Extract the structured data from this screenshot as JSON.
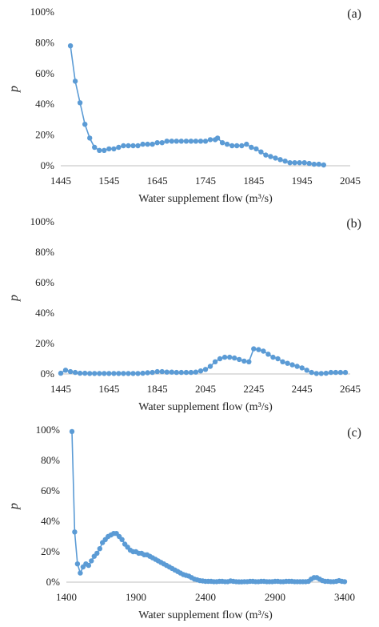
{
  "colors": {
    "series": "#5b9bd5",
    "axis": "#bfbfbf"
  },
  "chart_data": [
    {
      "type": "line",
      "panel_label": "(a)",
      "xlabel": "Water supplement flow (m³/s)",
      "ylabel": "p",
      "xlim": [
        1445,
        2045
      ],
      "ylim": [
        0,
        100
      ],
      "xticks": [
        "1445",
        "1545",
        "1645",
        "1745",
        "1845",
        "1945",
        "2045"
      ],
      "yticks": [
        "0%",
        "20%",
        "40%",
        "60%",
        "80%",
        "100%"
      ],
      "grid": false,
      "series": [
        {
          "x": [
            1465,
            1475,
            1485,
            1495,
            1505,
            1515,
            1525,
            1535,
            1545,
            1555,
            1565,
            1575,
            1585,
            1595,
            1605,
            1615,
            1625,
            1635,
            1645,
            1655,
            1665,
            1675,
            1685,
            1695,
            1705,
            1715,
            1725,
            1735,
            1745,
            1755,
            1765,
            1770,
            1780,
            1790,
            1800,
            1810,
            1820,
            1830,
            1840,
            1850,
            1860,
            1870,
            1880,
            1890,
            1900,
            1910,
            1920,
            1930,
            1940,
            1950,
            1960,
            1970,
            1980,
            1990
          ],
          "y": [
            78,
            55,
            41,
            27,
            18,
            12,
            10,
            10,
            11,
            11,
            12,
            13,
            13,
            13,
            13,
            14,
            14,
            14,
            15,
            15,
            16,
            16,
            16,
            16,
            16,
            16,
            16,
            16,
            16,
            17,
            17,
            18,
            15,
            14,
            13,
            13,
            13,
            14,
            12,
            11,
            9,
            7,
            6,
            5,
            4,
            3,
            2,
            2,
            2,
            2,
            1.5,
            1,
            1,
            0.5
          ]
        }
      ]
    },
    {
      "type": "line",
      "panel_label": "(b)",
      "xlabel": "Water supplement flow (m³/s)",
      "ylabel": "p",
      "xlim": [
        1445,
        2645
      ],
      "ylim": [
        0,
        100
      ],
      "xticks": [
        "1445",
        "1645",
        "1845",
        "2045",
        "2245",
        "2445",
        "2645"
      ],
      "yticks": [
        "0%",
        "20%",
        "40%",
        "60%",
        "80%",
        "100%"
      ],
      "grid": false,
      "series": [
        {
          "x": [
            1445,
            1465,
            1485,
            1505,
            1525,
            1545,
            1565,
            1585,
            1605,
            1625,
            1645,
            1665,
            1685,
            1705,
            1725,
            1745,
            1765,
            1785,
            1805,
            1825,
            1845,
            1865,
            1885,
            1905,
            1925,
            1945,
            1965,
            1985,
            2005,
            2025,
            2045,
            2065,
            2085,
            2105,
            2125,
            2145,
            2165,
            2185,
            2205,
            2225,
            2245,
            2265,
            2285,
            2305,
            2325,
            2345,
            2365,
            2385,
            2405,
            2425,
            2445,
            2465,
            2485,
            2505,
            2525,
            2545,
            2565,
            2585,
            2605,
            2625
          ],
          "y": [
            0.5,
            2.5,
            1.5,
            1,
            0.5,
            0.5,
            0.3,
            0.3,
            0.3,
            0.3,
            0.3,
            0.3,
            0.3,
            0.3,
            0.3,
            0.3,
            0.3,
            0.5,
            0.8,
            1,
            1.5,
            1.5,
            1.2,
            1.2,
            1,
            1,
            1,
            1,
            1.2,
            2,
            3,
            5,
            8,
            10,
            11,
            11,
            10.5,
            9.5,
            8.5,
            8,
            16.5,
            16,
            15,
            13,
            11,
            10,
            8,
            7,
            6,
            5,
            4,
            2.5,
            1,
            0.3,
            0.3,
            0.5,
            1,
            1,
            1,
            1
          ]
        }
      ]
    },
    {
      "type": "line",
      "panel_label": "(c)",
      "xlabel": "Water supplement flow (m³/s)",
      "ylabel": "p",
      "xlim": [
        1400,
        3400
      ],
      "ylim": [
        0,
        100
      ],
      "xticks": [
        "1400",
        "1900",
        "2400",
        "2900",
        "3400"
      ],
      "yticks": [
        "0%",
        "20%",
        "40%",
        "60%",
        "80%",
        "100%"
      ],
      "grid": false,
      "series": [
        {
          "x": [
            1440,
            1460,
            1480,
            1500,
            1520,
            1540,
            1560,
            1580,
            1600,
            1620,
            1640,
            1660,
            1680,
            1700,
            1720,
            1740,
            1760,
            1780,
            1800,
            1820,
            1840,
            1860,
            1880,
            1900,
            1920,
            1940,
            1960,
            1980,
            2000,
            2020,
            2040,
            2060,
            2080,
            2100,
            2120,
            2140,
            2160,
            2180,
            2200,
            2220,
            2240,
            2260,
            2280,
            2300,
            2320,
            2340,
            2360,
            2380,
            2400,
            2420,
            2440,
            2460,
            2480,
            2500,
            2520,
            2540,
            2560,
            2580,
            2600,
            2620,
            2640,
            2660,
            2680,
            2700,
            2720,
            2740,
            2760,
            2780,
            2800,
            2820,
            2840,
            2860,
            2880,
            2900,
            2920,
            2940,
            2960,
            2980,
            3000,
            3020,
            3040,
            3060,
            3080,
            3100,
            3120,
            3140,
            3160,
            3180,
            3200,
            3220,
            3240,
            3260,
            3280,
            3300,
            3320,
            3340,
            3360,
            3380,
            3400
          ],
          "y": [
            99,
            33,
            12,
            6,
            10,
            12,
            11,
            14,
            17,
            19,
            22,
            26,
            28,
            30,
            31,
            32,
            32,
            30,
            28,
            25,
            23,
            21,
            20,
            20,
            19,
            19,
            18,
            18,
            17,
            16,
            15,
            14,
            13,
            12,
            11,
            10,
            9,
            8,
            7,
            6,
            5,
            4.5,
            4,
            3,
            2,
            1.5,
            1,
            0.8,
            0.5,
            0.5,
            0.5,
            0.3,
            0.3,
            0.5,
            0.5,
            0.3,
            0.3,
            0.8,
            0.5,
            0.3,
            0.2,
            0.2,
            0.3,
            0.3,
            0.5,
            0.5,
            0.3,
            0.3,
            0.5,
            0.5,
            0.3,
            0.3,
            0.3,
            0.5,
            0.5,
            0.3,
            0.3,
            0.5,
            0.5,
            0.5,
            0.3,
            0.3,
            0.3,
            0.3,
            0.3,
            0.5,
            2,
            3,
            3,
            2,
            1,
            0.5,
            0.5,
            0.3,
            0.3,
            0.5,
            1,
            0.5,
            0.3
          ]
        }
      ]
    }
  ]
}
